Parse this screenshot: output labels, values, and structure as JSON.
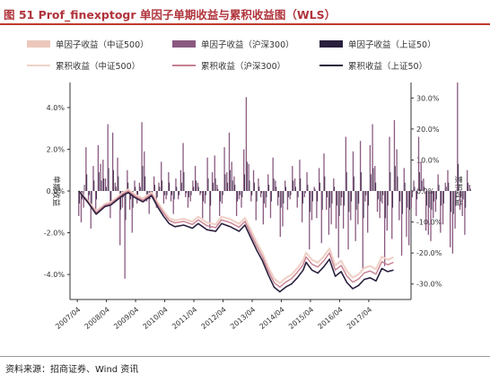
{
  "title": "图 51 Prof_finexptogr 单因子单期收益与累积收益图（WLS）",
  "source": "资料来源：招商证券、Wind 资讯",
  "legend": {
    "bar_zz500": "单因子收益（中证500）",
    "bar_hs300": "单因子收益（沪深300）",
    "bar_sz50": "单因子收益（上证50）",
    "line_zz500": "累积收益（中证500）",
    "line_hs300": "累积收益（沪深300）",
    "line_sz50": "累积收益（上证50）"
  },
  "colors": {
    "bar_zz500": "#ecc8bc",
    "bar_hs300": "#8a5a80",
    "bar_sz50": "#2a1f3d",
    "line_zz500": "#f0d2c8",
    "line_hs300": "#c77f92",
    "line_sz50": "#2a1f3d",
    "title": "#b0343c"
  },
  "chart_data": {
    "type": "bar",
    "ylabel": "单期收益",
    "y2label": "累积收益",
    "ylim": [
      -5.2,
      5.2
    ],
    "y2lim": [
      -35,
      35
    ],
    "yticks": [
      "4.0%",
      "2.0%",
      "0.0%",
      "-2.0%",
      "-4.0%"
    ],
    "y2ticks": [
      "30.0%",
      "20.0%",
      "10.0%",
      "0.0%",
      "-10.0%",
      "-20.0%",
      "-30.0%"
    ],
    "x_range": [
      2007.0,
      2018.7
    ],
    "xticks": [
      "2007/04",
      "2008/04",
      "2009/04",
      "2010/04",
      "2011/04",
      "2012/04",
      "2013/04",
      "2014/04",
      "2015/04",
      "2016/04",
      "2017/04"
    ],
    "bar_x_start": 2007.3,
    "bar_x_step": 0.0833,
    "bars_hs300": [
      -1.2,
      -1.5,
      -0.8,
      2.1,
      -0.5,
      -1.8,
      1.2,
      -1.0,
      2.2,
      1.3,
      1.5,
      0.6,
      3.2,
      -1.3,
      2.8,
      0.4,
      1.6,
      -2.6,
      -0.8,
      -4.2,
      1.0,
      -0.9,
      -2.0,
      0.5,
      -0.6,
      0.4,
      3.3,
      1.9,
      -0.5,
      -1.1,
      -0.3,
      0.7,
      -0.8,
      0.4,
      1.4,
      -0.6,
      -0.4,
      0.9,
      -0.5,
      -1.1,
      0.6,
      -0.4,
      1.0,
      2.3,
      -0.3,
      -0.8,
      -0.5,
      0.5,
      1.2,
      0.4,
      -0.2,
      -1.3,
      -0.6,
      1.6,
      -1.8,
      0.9,
      1.7,
      0.3,
      -1.2,
      -0.6,
      2.1,
      0.9,
      2.8,
      1.4,
      0.7,
      -1.2,
      -0.4,
      -0.8,
      2.0,
      4.5,
      1.3,
      -0.5,
      1.0,
      -1.4,
      0.6,
      -0.3,
      -1.6,
      -0.8,
      0.8,
      -1.3,
      1.6,
      0.5,
      -0.7,
      -2.2,
      -1.7,
      0.5,
      -0.9,
      -0.4,
      1.2,
      0.6,
      -0.8,
      1.5,
      -1.5,
      -0.3,
      0.9,
      -2.8,
      -1.4,
      0.2,
      -1.3,
      1.1,
      -2.5,
      1.8,
      -0.9,
      -2.1,
      -1.6,
      0.6,
      -1.8,
      -3.2,
      -0.7,
      -1.8,
      2.6,
      -2.8,
      -1.4,
      1.9,
      -2.4,
      -1.6,
      2.4,
      -3.8,
      -0.5,
      -2.0,
      2.2,
      3.2,
      1.2,
      -1.0,
      -1.3,
      -0.6,
      -3.6,
      -1.9,
      2.6,
      -2.3,
      3.4,
      2.0,
      -1.4,
      -3.1,
      1.1,
      -2.2,
      -2.6,
      -0.8,
      0.5,
      -1.2,
      2.6,
      1.4,
      0.6,
      -1.9,
      -2.1,
      -2.4,
      -1.3,
      -1.0,
      0.8,
      -2.0,
      -1.6,
      0.4,
      1.0,
      -2.7,
      -3.0,
      -1.8,
      5.2,
      -0.9,
      -1.2,
      -2.1,
      1.0,
      0.3
    ],
    "bars_sz50": [
      -0.6,
      -0.4,
      0.3,
      0.8,
      -0.2,
      -0.7,
      0.5,
      -0.4,
      0.9,
      0.5,
      0.6,
      0.2,
      1.1,
      -0.6,
      1.0,
      0.2,
      0.7,
      -0.9,
      -0.3,
      -1.4,
      0.4,
      -0.4,
      -0.8,
      0.2,
      -0.2,
      0.2,
      1.2,
      0.7,
      -0.2,
      -0.4,
      -0.1,
      0.3,
      -0.3,
      0.2,
      0.5,
      -0.2,
      -0.2,
      0.4,
      -0.2,
      -0.4,
      0.2,
      -0.2,
      0.4,
      0.9,
      -0.1,
      -0.3,
      -0.2,
      0.2,
      0.5,
      0.2,
      -0.1,
      -0.5,
      -0.2,
      0.6,
      -0.7,
      0.4,
      0.6,
      0.1,
      -0.5,
      -0.2,
      0.8,
      0.4,
      1.0,
      0.5,
      0.3,
      -0.5,
      -0.2,
      -0.3,
      0.8,
      1.4,
      0.5,
      -0.2,
      0.4,
      -0.5,
      0.2,
      -0.1,
      -0.6,
      -0.3,
      0.3,
      -0.5,
      0.6,
      0.2,
      -0.3,
      -0.8,
      -0.6,
      0.2,
      -0.3,
      -0.2,
      0.5,
      0.2,
      -0.3,
      0.6,
      -0.6,
      -0.1,
      0.3,
      -1.0,
      -0.5,
      0.1,
      -0.5,
      0.4,
      -0.9,
      0.7,
      -0.3,
      -0.8,
      -0.6,
      0.2,
      -0.7,
      -1.2,
      -0.3,
      -0.7,
      0.9,
      -1.0,
      -0.5,
      0.7,
      -0.9,
      -0.6,
      0.9,
      -1.3,
      -0.2,
      -0.7,
      0.8,
      1.1,
      0.4,
      -0.4,
      -0.5,
      -0.2,
      -1.3,
      -0.7,
      0.9,
      -0.8,
      1.2,
      0.7,
      -0.5,
      -1.1,
      0.4,
      -0.8,
      -0.9,
      -0.3,
      0.2,
      -0.4,
      0.9,
      0.5,
      0.2,
      -0.7,
      -0.8,
      -0.9,
      -0.5,
      -0.4,
      0.3,
      -0.7,
      -0.6,
      0.2,
      0.4,
      -1.0,
      -1.1,
      -0.7,
      1.3,
      -0.3,
      -0.4,
      -0.8,
      0.4,
      0.1
    ],
    "cum_points_x": [
      2007.3,
      2007.6,
      2007.9,
      2008.2,
      2008.4,
      2008.6,
      2008.8,
      2009.0,
      2009.2,
      2009.5,
      2009.8,
      2010.0,
      2010.2,
      2010.4,
      2010.6,
      2010.9,
      2011.2,
      2011.4,
      2011.7,
      2012.0,
      2012.2,
      2012.5,
      2012.8,
      2013.0,
      2013.2,
      2013.4,
      2013.6,
      2013.8,
      2014.0,
      2014.2,
      2014.4,
      2014.6,
      2014.8,
      2015.0,
      2015.1,
      2015.3,
      2015.5,
      2015.7,
      2015.9,
      2016.1,
      2016.3,
      2016.5,
      2016.7,
      2016.9,
      2017.1,
      2017.3,
      2017.5,
      2017.7,
      2017.9,
      2018.1
    ],
    "cum_sz50": [
      0.0,
      -3.5,
      -7.5,
      -5.0,
      -4.5,
      -3.0,
      -1.5,
      -0.5,
      -2.0,
      -3.5,
      -1.5,
      -5.0,
      -8.0,
      -10.5,
      -11.5,
      -11.0,
      -12.0,
      -10.5,
      -12.5,
      -13.0,
      -10.5,
      -11.5,
      -13.0,
      -11.0,
      -15.0,
      -19.0,
      -22.5,
      -27.0,
      -31.0,
      -32.5,
      -31.0,
      -30.0,
      -28.0,
      -25.5,
      -23.0,
      -25.5,
      -26.5,
      -24.5,
      -22.0,
      -27.5,
      -26.0,
      -29.5,
      -31.5,
      -30.5,
      -28.5,
      -28.0,
      -29.0,
      -25.0,
      -26.0,
      -25.5
    ],
    "cum_hs300": [
      0.0,
      -3.2,
      -7.0,
      -4.6,
      -4.0,
      -2.6,
      -1.0,
      0.0,
      -1.5,
      -3.0,
      -1.0,
      -4.2,
      -7.0,
      -9.5,
      -10.3,
      -9.8,
      -10.8,
      -9.3,
      -11.2,
      -11.8,
      -9.3,
      -10.2,
      -11.7,
      -9.8,
      -13.7,
      -17.7,
      -21.2,
      -25.7,
      -29.5,
      -31.0,
      -29.4,
      -28.3,
      -26.2,
      -23.8,
      -21.3,
      -23.6,
      -24.5,
      -22.6,
      -20.0,
      -25.5,
      -24.0,
      -27.4,
      -29.4,
      -28.4,
      -26.4,
      -25.8,
      -26.8,
      -22.8,
      -23.8,
      -23.0
    ],
    "cum_zz500": [
      0.0,
      -3.0,
      -6.5,
      -4.2,
      -3.6,
      -2.2,
      -0.6,
      0.5,
      -1.0,
      -2.4,
      -0.5,
      -3.6,
      -6.3,
      -8.7,
      -9.5,
      -9.0,
      -9.9,
      -8.3,
      -10.2,
      -10.8,
      -8.3,
      -9.1,
      -10.6,
      -8.7,
      -12.5,
      -16.5,
      -20.0,
      -24.5,
      -28.2,
      -29.7,
      -28.1,
      -27.0,
      -24.9,
      -22.4,
      -19.9,
      -22.2,
      -23.1,
      -21.2,
      -18.6,
      -24.0,
      -22.5,
      -25.9,
      -27.9,
      -26.9,
      -24.8,
      -24.2,
      -25.2,
      -21.2,
      -22.2,
      -21.4
    ]
  }
}
